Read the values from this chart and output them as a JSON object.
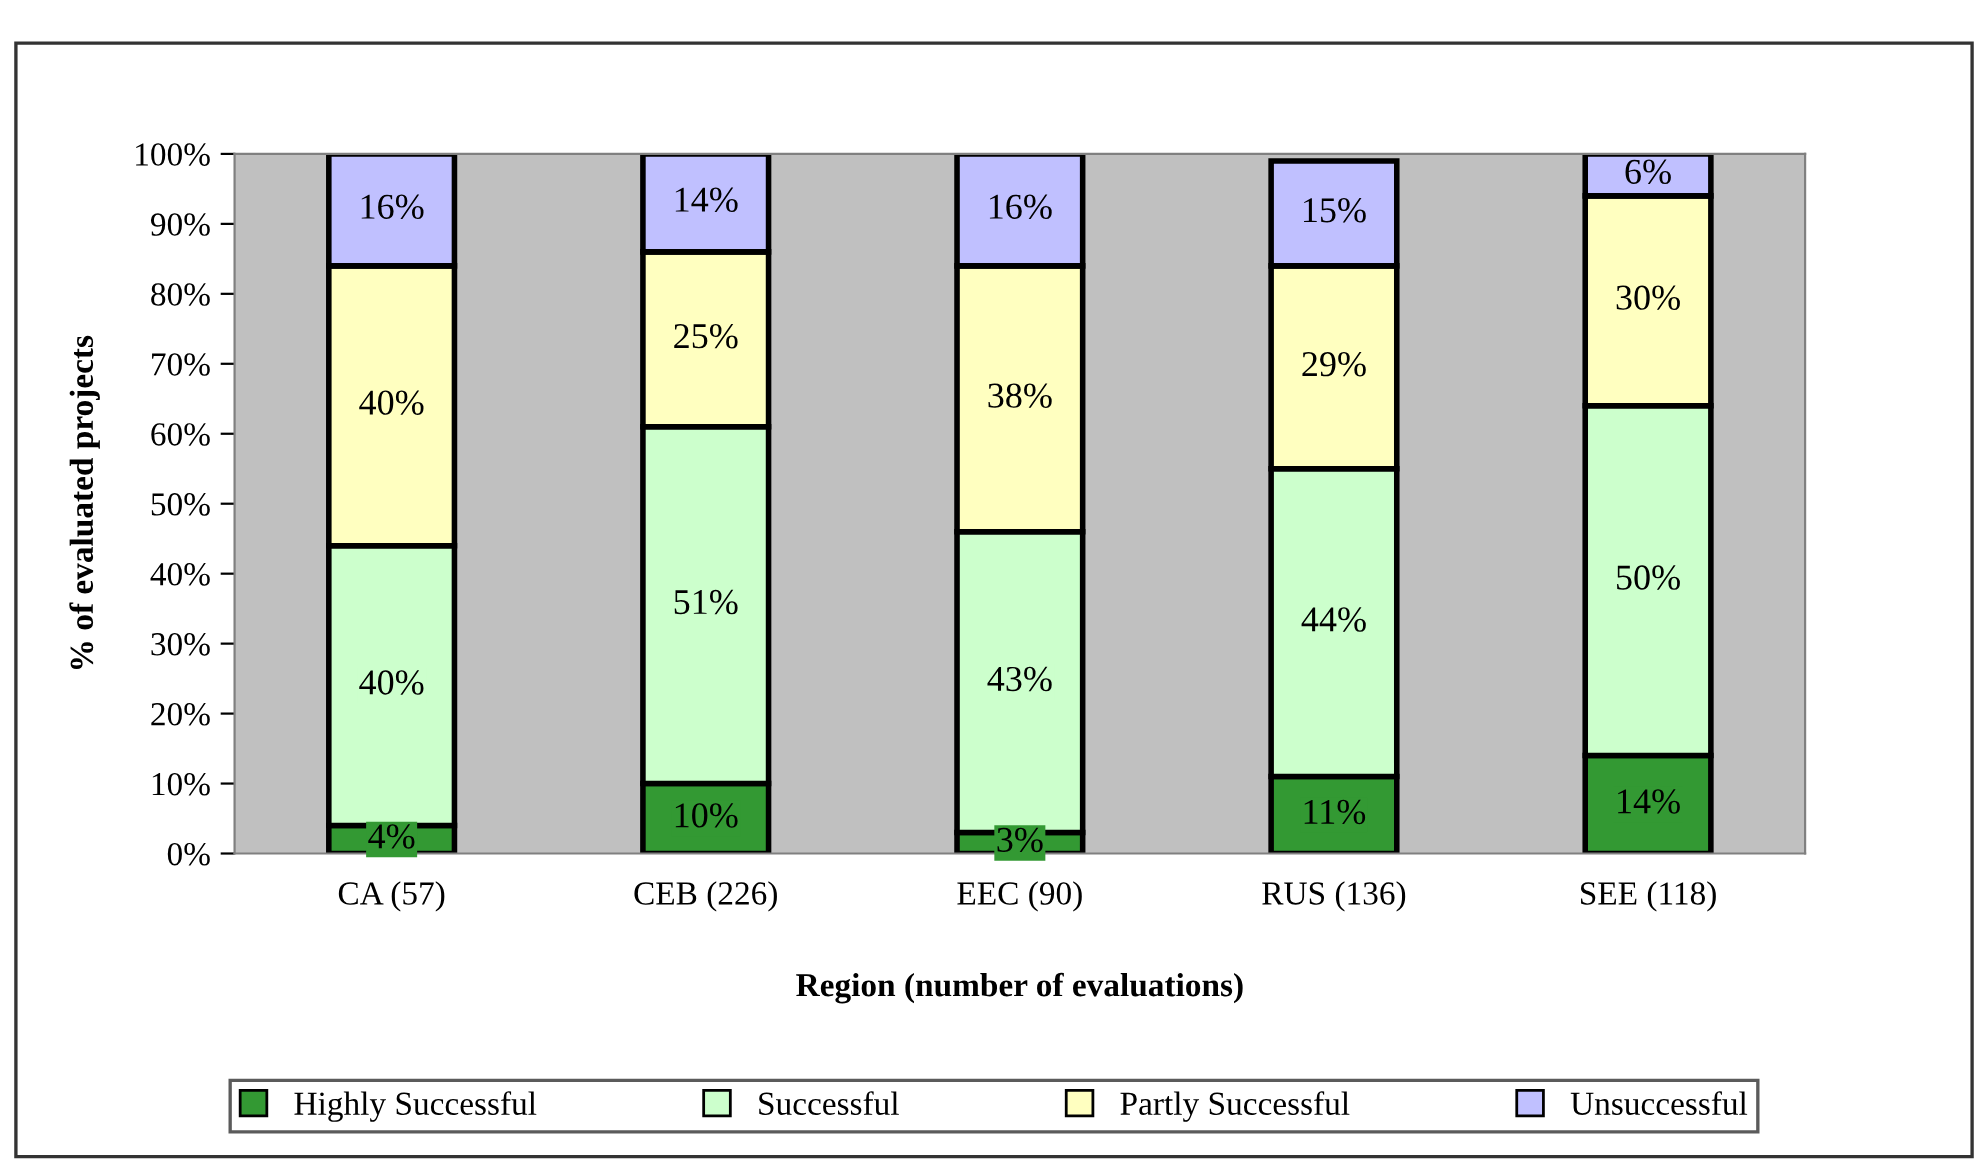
{
  "chart_data": {
    "type": "bar",
    "stacked": true,
    "xlabel": "Region (number of evaluations)",
    "ylabel": "% of evaluated projects",
    "categories": [
      "CA (57)",
      "CEB (226)",
      "EEC (90)",
      "RUS (136)",
      "SEE (118)"
    ],
    "series": [
      {
        "name": "Highly Successful",
        "color": "#339933",
        "values": [
          4,
          10,
          3,
          11,
          14
        ],
        "value_labels": [
          "4%",
          "10%",
          "3%",
          "11%",
          "14%"
        ]
      },
      {
        "name": "Successful",
        "color": "#ccffcc",
        "values": [
          40,
          51,
          43,
          44,
          50
        ],
        "value_labels": [
          "40%",
          "51%",
          "43%",
          "44%",
          "50%"
        ]
      },
      {
        "name": "Partly Successful",
        "color": "#ffffc0",
        "values": [
          40,
          25,
          38,
          29,
          30
        ],
        "value_labels": [
          "40%",
          "25%",
          "38%",
          "29%",
          "30%"
        ]
      },
      {
        "name": "Unsuccessful",
        "color": "#c0c0ff",
        "values": [
          16,
          14,
          16,
          15,
          6
        ],
        "value_labels": [
          "16%",
          "14%",
          "16%",
          "15%",
          "6%"
        ]
      }
    ],
    "ylim": [
      0,
      100
    ],
    "yticks": [
      {
        "value": 0,
        "label": "0%"
      },
      {
        "value": 10,
        "label": "10%"
      },
      {
        "value": 20,
        "label": "20%"
      },
      {
        "value": 30,
        "label": "30%"
      },
      {
        "value": 40,
        "label": "40%"
      },
      {
        "value": 50,
        "label": "50%"
      },
      {
        "value": 60,
        "label": "60%"
      },
      {
        "value": 70,
        "label": "70%"
      },
      {
        "value": 80,
        "label": "80%"
      },
      {
        "value": 90,
        "label": "90%"
      },
      {
        "value": 100,
        "label": "100%"
      }
    ],
    "grid": false,
    "legend": "bottom"
  }
}
